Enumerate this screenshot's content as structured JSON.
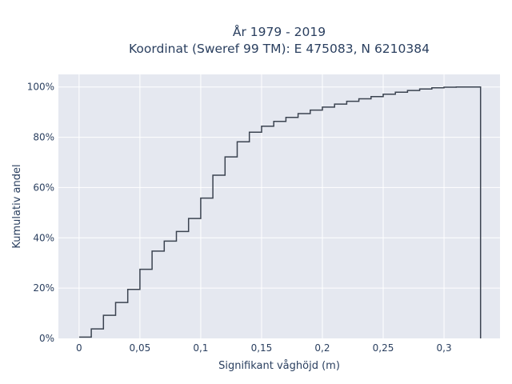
{
  "chart_data": {
    "type": "line",
    "line_shape": "step",
    "title": "År 1979 - 2019",
    "subtitle": "Koordinat (Sweref 99 TM): E 475083, N 6210384",
    "xlabel": "Signifikant våghöjd (m)",
    "ylabel": "Kumulativ andel",
    "xlim": [
      -0.017,
      0.346
    ],
    "ylim": [
      0,
      1.05
    ],
    "x_ticks": [
      0,
      0.05,
      0.1,
      0.15,
      0.2,
      0.25,
      0.3
    ],
    "x_tick_labels": [
      "0",
      "0,05",
      "0,1",
      "0,15",
      "0,2",
      "0,25",
      "0,3"
    ],
    "y_ticks": [
      0,
      0.2,
      0.4,
      0.6,
      0.8,
      1.0
    ],
    "y_tick_labels": [
      "0%",
      "20%",
      "40%",
      "60%",
      "80%",
      "100%"
    ],
    "grid": true,
    "colors": {
      "plot_bg": "#e5e8f0",
      "grid": "#ffffff",
      "line": "#3b4350",
      "text": "#2a3f5f"
    },
    "series": [
      {
        "x": [
          0,
          0.005,
          0.01,
          0.015,
          0.02,
          0.025,
          0.03,
          0.035,
          0.04,
          0.045,
          0.05,
          0.055,
          0.06,
          0.065,
          0.07,
          0.075,
          0.08,
          0.085,
          0.09,
          0.095,
          0.1,
          0.105,
          0.11,
          0.115,
          0.12,
          0.125,
          0.13,
          0.135,
          0.14,
          0.145,
          0.15,
          0.155,
          0.16,
          0.165,
          0.17,
          0.175,
          0.18,
          0.185,
          0.19,
          0.195,
          0.2,
          0.205,
          0.21,
          0.215,
          0.22,
          0.225,
          0.23,
          0.235,
          0.24,
          0.245,
          0.25,
          0.255,
          0.26,
          0.265,
          0.27,
          0.275,
          0.28,
          0.285,
          0.29,
          0.295,
          0.3,
          0.305,
          0.31,
          0.315,
          0.32,
          0.325,
          0.33
        ],
        "y": [
          0.005,
          0.005,
          0.038,
          0.038,
          0.092,
          0.092,
          0.143,
          0.143,
          0.195,
          0.195,
          0.275,
          0.275,
          0.347,
          0.347,
          0.387,
          0.387,
          0.425,
          0.425,
          0.477,
          0.477,
          0.558,
          0.558,
          0.649,
          0.649,
          0.722,
          0.722,
          0.782,
          0.782,
          0.82,
          0.82,
          0.844,
          0.844,
          0.863,
          0.863,
          0.879,
          0.879,
          0.894,
          0.894,
          0.908,
          0.908,
          0.92,
          0.92,
          0.932,
          0.932,
          0.943,
          0.943,
          0.953,
          0.953,
          0.962,
          0.962,
          0.971,
          0.971,
          0.979,
          0.979,
          0.986,
          0.986,
          0.992,
          0.992,
          0.997,
          0.997,
          0.999,
          0.999,
          1.0,
          1.0,
          1.0,
          1.0,
          1.0
        ]
      }
    ],
    "drop_to_zero_at_end": true
  }
}
